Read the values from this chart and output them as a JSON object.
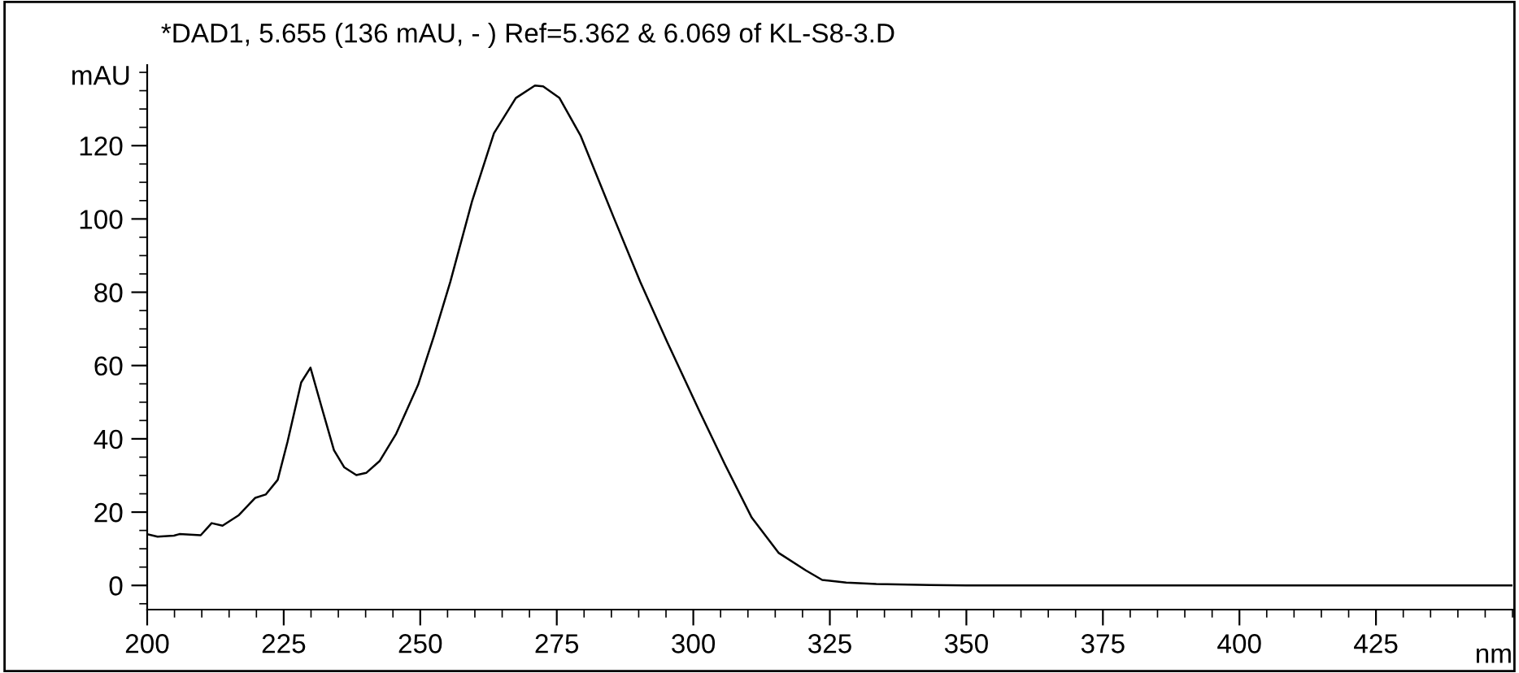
{
  "chart_data": {
    "type": "line",
    "title": "*DAD1, 5.655 (136 mAU, - ) Ref=5.362 & 6.069 of KL-S8-3.D",
    "xlabel": "nm",
    "ylabel": "mAU",
    "series": [
      {
        "color": "#000000",
        "x": [
          200,
          201.9,
          204.9,
          205.9,
          209.8,
          211.8,
          213.8,
          216.8,
          219.8,
          221.7,
          223.9,
          225.7,
          228.2,
          229.9,
          232.2,
          234.2,
          236.1,
          238.3,
          240.1,
          242.6,
          245.6,
          249.6,
          252.5,
          255.5,
          259.5,
          263.5,
          267.5,
          271.0,
          272.5,
          275.5,
          279.4,
          285.4,
          290.3,
          295.2,
          301.2,
          305.8,
          310.7,
          315.6,
          320.6,
          323.6,
          328,
          333.5,
          343.3,
          350,
          450
        ],
        "values": [
          14.0,
          13.3,
          13.6,
          14.0,
          13.7,
          17.0,
          16.3,
          19.2,
          23.9,
          24.8,
          28.8,
          39.2,
          55.4,
          59.4,
          47.3,
          36.9,
          32.2,
          30.1,
          30.7,
          34.0,
          41.4,
          54.7,
          68.0,
          82.8,
          104.9,
          123.4,
          133.0,
          136.4,
          136.2,
          133.0,
          122.6,
          100.5,
          82.8,
          66.5,
          47.3,
          33.0,
          18.5,
          8.9,
          4.1,
          1.5,
          0.8,
          0.4,
          0.1,
          0,
          0
        ]
      }
    ],
    "xlim": [
      200,
      450
    ],
    "ylim": [
      -6.6,
      142
    ],
    "xticks": [
      200,
      225,
      250,
      275,
      300,
      325,
      350,
      375,
      400,
      425
    ],
    "yticks": [
      0,
      20,
      40,
      60,
      80,
      100,
      120
    ],
    "grid": false,
    "legend": false,
    "marker": "none",
    "line_style": "solid"
  }
}
